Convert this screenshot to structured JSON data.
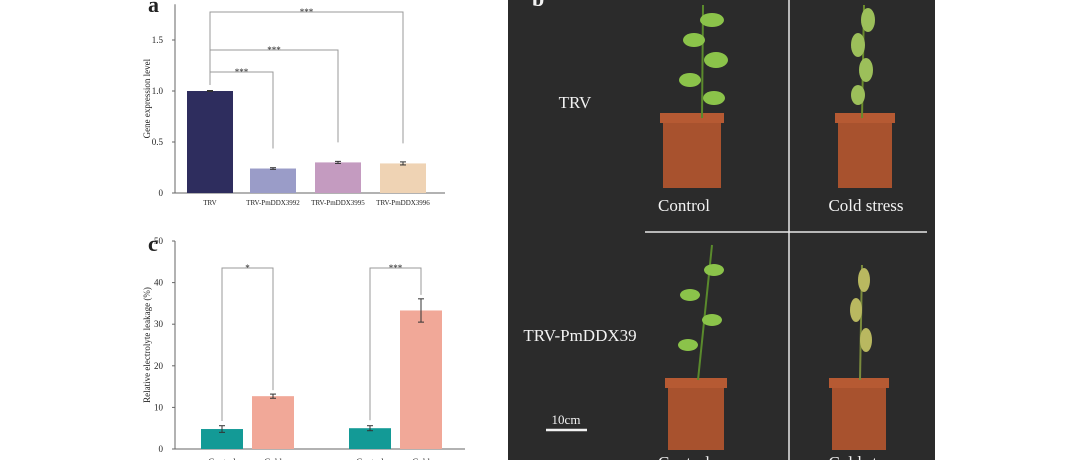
{
  "chart_data": [
    {
      "type": "bar",
      "panel": "a",
      "y_label": "Gene expression level",
      "categories": [
        "TRV",
        "TRV-PmDDX3992",
        "TRV-PmDDX3995",
        "TRV-PmDDX3996"
      ],
      "values": [
        1.0,
        0.24,
        0.3,
        0.29
      ],
      "errors": [
        0.005,
        0.008,
        0.01,
        0.015
      ],
      "colors": [
        "#2e2d5e",
        "#9a9cc8",
        "#c49bc0",
        "#efd3b4"
      ],
      "ylim": [
        0,
        1.85
      ],
      "yticks": [
        0,
        {
          "value": 0.5,
          "label": "0.5"
        },
        {
          "value": 1,
          "label": "1.0"
        },
        {
          "value": 1.5,
          "label": "1.5"
        }
      ],
      "annotations": [
        "***",
        "***",
        "***"
      ]
    },
    {
      "type": "grouped_bar",
      "panel": "c",
      "y_label": "Relative electrolyte leakage (%)",
      "categories": [
        null,
        null
      ],
      "series": [
        {
          "name": "Control",
          "color": "#139a96",
          "values": [
            4.8,
            5.0
          ],
          "errors": [
            0.8,
            0.6
          ]
        },
        {
          "name": "Cold",
          "color": "#f1a898",
          "values": [
            12.7,
            33.3
          ],
          "errors": [
            0.5,
            2.8
          ]
        }
      ],
      "ylim": [
        0,
        50
      ],
      "yticks": [
        0,
        10,
        20,
        30,
        40,
        50
      ],
      "annotations": [
        "*",
        "***"
      ]
    }
  ],
  "photo_panel": {
    "panel": "b",
    "rows": [
      "TRV",
      "TRV-PmDDX39"
    ],
    "columns": [
      "Control",
      "Cold stress"
    ],
    "scale_bar": "10cm"
  }
}
